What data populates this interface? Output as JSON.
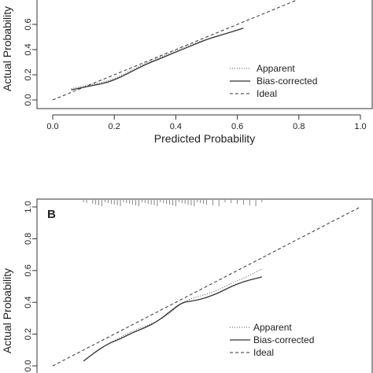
{
  "chart_data": [
    {
      "type": "line",
      "panel_label": "",
      "xlabel": "Predicted Probability",
      "ylabel": "Actual Probability",
      "xlim": [
        0,
        1
      ],
      "ylim": [
        0,
        0.7
      ],
      "x_ticks": [
        "0.0",
        "0.2",
        "0.4",
        "0.6",
        "0.8",
        "1.0"
      ],
      "y_ticks": [
        "0.0",
        "0.2",
        "0.4",
        "0.6"
      ],
      "legend_position": "bottom-right",
      "series": [
        {
          "name": "Apparent",
          "style": "dotted",
          "x": [
            0.06,
            0.1,
            0.14,
            0.18,
            0.22,
            0.26,
            0.3,
            0.34,
            0.38,
            0.42,
            0.46,
            0.5,
            0.54,
            0.58,
            0.62
          ],
          "y": [
            0.09,
            0.11,
            0.13,
            0.15,
            0.19,
            0.24,
            0.29,
            0.33,
            0.37,
            0.41,
            0.45,
            0.48,
            0.51,
            0.54,
            0.57
          ]
        },
        {
          "name": "Bias-corrected",
          "style": "solid",
          "x": [
            0.06,
            0.1,
            0.14,
            0.18,
            0.22,
            0.26,
            0.3,
            0.34,
            0.38,
            0.42,
            0.46,
            0.5,
            0.54,
            0.58,
            0.62
          ],
          "y": [
            0.08,
            0.1,
            0.12,
            0.14,
            0.18,
            0.23,
            0.28,
            0.32,
            0.36,
            0.4,
            0.44,
            0.48,
            0.51,
            0.54,
            0.57
          ]
        },
        {
          "name": "Ideal",
          "style": "dashed",
          "x": [
            0,
            1
          ],
          "y": [
            0,
            1
          ]
        }
      ]
    },
    {
      "type": "line",
      "panel_label": "B",
      "xlabel": "",
      "ylabel": "Actual Probability",
      "xlim": [
        0,
        1
      ],
      "ylim": [
        0,
        1
      ],
      "y_ticks": [
        "0.0",
        "0.2",
        "0.4",
        "0.6",
        "0.8",
        "1.0"
      ],
      "legend_position": "bottom-right",
      "series": [
        {
          "name": "Apparent",
          "style": "dotted",
          "x": [
            0.1,
            0.14,
            0.18,
            0.22,
            0.26,
            0.3,
            0.34,
            0.38,
            0.42,
            0.46,
            0.5,
            0.54,
            0.58,
            0.62,
            0.66,
            0.68
          ],
          "y": [
            0.03,
            0.09,
            0.14,
            0.18,
            0.22,
            0.25,
            0.28,
            0.33,
            0.4,
            0.43,
            0.45,
            0.48,
            0.52,
            0.55,
            0.59,
            0.61
          ]
        },
        {
          "name": "Bias-corrected",
          "style": "solid",
          "x": [
            0.1,
            0.14,
            0.18,
            0.22,
            0.26,
            0.3,
            0.34,
            0.38,
            0.42,
            0.46,
            0.5,
            0.54,
            0.58,
            0.62,
            0.66,
            0.68
          ],
          "y": [
            0.03,
            0.09,
            0.14,
            0.17,
            0.21,
            0.24,
            0.28,
            0.34,
            0.4,
            0.41,
            0.43,
            0.46,
            0.5,
            0.53,
            0.55,
            0.56
          ]
        },
        {
          "name": "Ideal",
          "style": "dashed",
          "x": [
            0,
            1
          ],
          "y": [
            0,
            1
          ]
        }
      ],
      "rug_x": [
        0.1,
        0.11,
        0.13,
        0.14,
        0.15,
        0.16,
        0.17,
        0.18,
        0.19,
        0.2,
        0.21,
        0.22,
        0.23,
        0.24,
        0.25,
        0.26,
        0.27,
        0.28,
        0.29,
        0.3,
        0.31,
        0.32,
        0.33,
        0.34,
        0.35,
        0.36,
        0.37,
        0.38,
        0.39,
        0.4,
        0.41,
        0.42,
        0.43,
        0.44,
        0.45,
        0.46,
        0.47,
        0.48,
        0.49,
        0.5,
        0.52,
        0.54,
        0.56,
        0.58,
        0.6,
        0.62,
        0.64,
        0.66,
        0.68
      ]
    }
  ]
}
